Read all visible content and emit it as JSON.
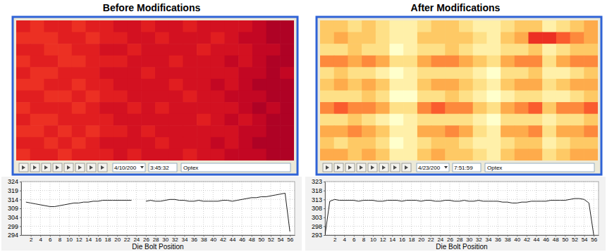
{
  "chart_data": [
    {
      "type": "line",
      "title": "Before Modifications",
      "x": [
        1,
        2,
        3,
        4,
        5,
        6,
        7,
        8,
        9,
        10,
        11,
        12,
        13,
        14,
        15,
        16,
        17,
        18,
        19,
        20,
        21,
        22,
        23,
        24,
        25,
        26,
        27,
        28,
        29,
        30,
        31,
        32,
        33,
        34,
        35,
        36,
        37,
        38,
        39,
        40,
        41,
        42,
        43,
        44,
        45,
        46,
        47,
        48,
        49,
        50,
        51,
        52,
        53,
        54,
        55,
        56
      ],
      "series": [
        {
          "color": "#202020",
          "values": [
            312.5,
            312,
            311.5,
            311,
            310.5,
            310,
            310,
            310.5,
            311,
            311.5,
            312,
            312,
            312.5,
            312.5,
            313,
            313,
            313.5,
            313.5,
            313.5,
            313.5,
            313.5,
            313.5,
            313.5,
            null,
            null,
            313,
            313.5,
            313,
            313,
            313.5,
            314,
            314,
            313.5,
            313.5,
            313,
            313,
            313.5,
            313,
            313,
            313,
            313,
            313.5,
            313.5,
            313,
            313.5,
            314,
            314.5,
            315,
            315,
            315.5,
            315.5,
            316,
            316.5,
            317,
            317.5,
            296
          ]
        }
      ],
      "xlim": [
        0,
        57
      ],
      "ylim": [
        294,
        324
      ],
      "xticks": [
        2,
        4,
        6,
        8,
        10,
        12,
        14,
        16,
        18,
        20,
        22,
        24,
        26,
        28,
        30,
        32,
        34,
        36,
        38,
        40,
        42,
        44,
        46,
        48,
        50,
        52,
        54,
        56
      ],
      "yticks": [
        294,
        299,
        304,
        309,
        314,
        319,
        324
      ],
      "xlabel": "Die Bolt Position",
      "grid": true,
      "controls": {
        "date": "4/10/200",
        "time": "3:45:32",
        "label": "Optex"
      },
      "heatmap": {
        "zlim": [
          300,
          320
        ],
        "cells": [
          [
            315,
            314,
            315,
            315,
            314,
            315,
            315,
            316,
            316,
            315,
            316,
            316,
            315,
            316,
            316,
            316,
            316,
            317,
            318,
            318
          ],
          [
            314,
            314,
            314,
            315,
            315,
            314,
            315,
            315,
            316,
            316,
            315,
            316,
            316,
            316,
            315,
            316,
            317,
            317,
            318,
            318
          ],
          [
            315,
            315,
            314,
            314,
            315,
            315,
            316,
            316,
            315,
            316,
            316,
            316,
            316,
            315,
            316,
            316,
            316,
            317,
            317,
            318
          ],
          [
            314,
            315,
            315,
            314,
            314,
            315,
            315,
            315,
            316,
            316,
            316,
            315,
            316,
            316,
            316,
            317,
            316,
            317,
            318,
            318
          ],
          [
            315,
            314,
            314,
            315,
            315,
            315,
            316,
            316,
            316,
            315,
            316,
            316,
            316,
            316,
            316,
            316,
            317,
            317,
            318,
            317
          ],
          [
            314,
            314,
            315,
            315,
            314,
            315,
            315,
            316,
            316,
            316,
            316,
            315,
            316,
            316,
            317,
            316,
            317,
            318,
            318,
            318
          ],
          [
            315,
            315,
            314,
            314,
            315,
            314,
            315,
            315,
            316,
            316,
            316,
            316,
            315,
            316,
            316,
            317,
            317,
            317,
            318,
            318
          ],
          [
            314,
            315,
            315,
            315,
            314,
            315,
            316,
            316,
            315,
            316,
            315,
            316,
            316,
            316,
            316,
            316,
            317,
            318,
            317,
            318
          ],
          [
            315,
            314,
            314,
            315,
            315,
            315,
            315,
            316,
            316,
            316,
            316,
            316,
            316,
            315,
            316,
            317,
            316,
            317,
            318,
            318
          ],
          [
            314,
            314,
            315,
            314,
            315,
            314,
            315,
            315,
            316,
            315,
            316,
            316,
            316,
            316,
            316,
            316,
            317,
            317,
            318,
            318
          ],
          [
            315,
            315,
            314,
            315,
            314,
            315,
            316,
            316,
            316,
            316,
            315,
            316,
            316,
            316,
            317,
            316,
            317,
            318,
            318,
            318
          ],
          [
            314,
            315,
            315,
            314,
            315,
            315,
            315,
            316,
            315,
            316,
            316,
            316,
            315,
            316,
            316,
            317,
            317,
            317,
            318,
            318
          ]
        ]
      }
    },
    {
      "type": "line",
      "title": "After Modifications",
      "x": [
        0,
        1,
        2,
        3,
        4,
        5,
        6,
        7,
        8,
        9,
        10,
        11,
        12,
        13,
        14,
        15,
        16,
        17,
        18,
        19,
        20,
        21,
        22,
        23,
        24,
        25,
        26,
        27,
        28,
        29,
        30,
        31,
        32,
        33,
        34,
        35,
        36,
        37,
        38,
        39,
        40,
        41,
        42,
        43,
        44,
        45,
        46,
        47,
        48,
        49,
        50,
        51,
        52,
        53,
        54,
        55,
        56
      ],
      "series": [
        {
          "color": "#202020",
          "values": [
            293,
            312,
            313,
            312.5,
            312.5,
            312.5,
            312.5,
            312,
            312.5,
            312.5,
            312.5,
            312,
            312,
            312.5,
            312.5,
            312.5,
            312,
            312.5,
            312.5,
            312.5,
            312,
            312.5,
            312.5,
            312,
            312,
            312.5,
            312.5,
            312,
            312,
            312.5,
            312,
            312,
            312.5,
            312,
            312,
            312,
            312,
            311.5,
            311.5,
            311,
            311,
            311.5,
            311.5,
            312,
            312,
            312,
            312,
            312.5,
            312.5,
            312.5,
            312.5,
            313,
            313.5,
            313.5,
            313,
            311,
            293
          ]
        }
      ],
      "xlim": [
        0,
        57
      ],
      "ylim": [
        293,
        323
      ],
      "xticks": [
        2,
        4,
        6,
        8,
        10,
        12,
        14,
        16,
        18,
        20,
        22,
        24,
        26,
        28,
        30,
        32,
        34,
        36,
        38,
        40,
        42,
        44,
        46,
        48,
        50,
        52,
        54,
        56
      ],
      "yticks": [
        293,
        298,
        303,
        308,
        313,
        318,
        323
      ],
      "xlabel": "Die Bolt Position",
      "grid": true,
      "controls": {
        "date": "4/23/200",
        "time": "7:51:59",
        "label": "Optex"
      },
      "heatmap": {
        "zlim": [
          305,
          315
        ],
        "cells": [
          [
            308,
            308,
            307,
            308,
            307,
            306,
            306,
            307,
            308,
            308,
            307,
            306,
            306,
            307,
            308,
            308,
            306,
            307,
            308,
            309
          ],
          [
            308,
            309,
            308,
            308,
            307,
            306,
            306,
            308,
            308,
            308,
            308,
            307,
            306,
            308,
            309,
            312,
            312,
            311,
            310,
            309
          ],
          [
            307,
            307,
            308,
            307,
            307,
            305,
            306,
            307,
            307,
            308,
            307,
            306,
            306,
            307,
            307,
            308,
            306,
            307,
            308,
            308
          ],
          [
            310,
            310,
            309,
            310,
            309,
            307,
            307,
            309,
            310,
            310,
            309,
            308,
            307,
            309,
            310,
            310,
            307,
            309,
            310,
            310
          ],
          [
            307,
            308,
            307,
            307,
            306,
            305,
            306,
            307,
            307,
            307,
            307,
            306,
            305,
            307,
            307,
            308,
            306,
            306,
            307,
            308
          ],
          [
            308,
            309,
            308,
            309,
            308,
            306,
            306,
            308,
            309,
            309,
            308,
            307,
            306,
            308,
            309,
            309,
            307,
            308,
            309,
            309
          ],
          [
            307,
            307,
            307,
            308,
            307,
            305,
            305,
            307,
            307,
            308,
            307,
            306,
            305,
            306,
            307,
            307,
            306,
            306,
            307,
            308
          ],
          [
            310,
            311,
            310,
            310,
            309,
            307,
            307,
            310,
            311,
            310,
            310,
            308,
            307,
            309,
            310,
            311,
            308,
            310,
            310,
            311
          ],
          [
            307,
            307,
            308,
            307,
            306,
            305,
            306,
            307,
            307,
            307,
            307,
            306,
            305,
            307,
            307,
            307,
            306,
            307,
            307,
            308
          ],
          [
            309,
            309,
            310,
            309,
            308,
            306,
            306,
            309,
            309,
            310,
            309,
            307,
            306,
            309,
            309,
            310,
            307,
            309,
            309,
            310
          ],
          [
            308,
            307,
            308,
            308,
            307,
            305,
            306,
            307,
            308,
            308,
            307,
            306,
            306,
            307,
            308,
            308,
            306,
            307,
            308,
            308
          ],
          [
            309,
            309,
            308,
            309,
            308,
            306,
            306,
            308,
            309,
            308,
            308,
            307,
            306,
            308,
            309,
            309,
            307,
            308,
            309,
            309
          ]
        ]
      }
    }
  ]
}
